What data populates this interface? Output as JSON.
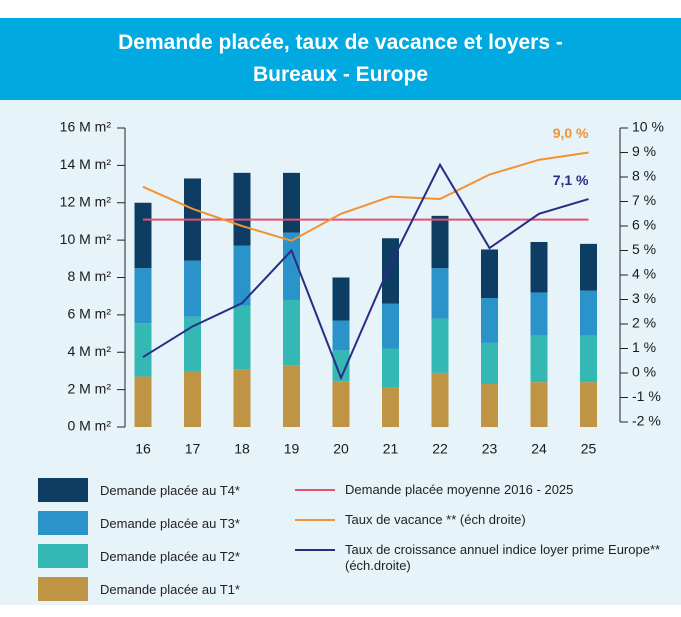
{
  "chart_data": {
    "type": "bar",
    "title": "Demande placée, taux de vacance et loyers - Bureaux - Europe",
    "categories": [
      "16",
      "17",
      "18",
      "19",
      "20",
      "21",
      "22",
      "23",
      "24",
      "25"
    ],
    "ylim": [
      0,
      16
    ],
    "yticks": [
      {
        "value": 0,
        "label": "0 M m²"
      },
      {
        "value": 2,
        "label": "2 M m²"
      },
      {
        "value": 4,
        "label": "4 M m²"
      },
      {
        "value": 6,
        "label": "6 M m²"
      },
      {
        "value": 8,
        "label": "8 M m²"
      },
      {
        "value": 10,
        "label": "10 M m²"
      },
      {
        "value": 12,
        "label": "12 M m²"
      },
      {
        "value": 14,
        "label": "14 M m²"
      },
      {
        "value": 16,
        "label": "16 M m²"
      }
    ],
    "y2lim": [
      -2,
      10
    ],
    "y2ticks": [
      {
        "value": -2,
        "label": "-2 %"
      },
      {
        "value": -1,
        "label": "-1 %"
      },
      {
        "value": 0,
        "label": "0 %"
      },
      {
        "value": 1,
        "label": "1 %"
      },
      {
        "value": 2,
        "label": "2 %"
      },
      {
        "value": 3,
        "label": "3 %"
      },
      {
        "value": 4,
        "label": "4 %"
      },
      {
        "value": 5,
        "label": "5 %"
      },
      {
        "value": 6,
        "label": "6 %"
      },
      {
        "value": 7,
        "label": "7 %"
      },
      {
        "value": 8,
        "label": "8 %"
      },
      {
        "value": 9,
        "label": "9 %"
      },
      {
        "value": 10,
        "label": "10 %"
      }
    ],
    "series": [
      {
        "name": "Demande placée au T1*",
        "type": "bar",
        "color": "#c09445",
        "values": [
          2.7,
          3.0,
          3.1,
          3.3,
          2.45,
          2.1,
          2.9,
          2.3,
          2.4,
          2.4
        ]
      },
      {
        "name": "Demande placée au T2*",
        "type": "bar",
        "color": "#33b8b3",
        "values": [
          2.85,
          2.9,
          3.4,
          3.5,
          1.65,
          2.1,
          2.9,
          2.2,
          2.5,
          2.5
        ]
      },
      {
        "name": "Demande placée au T3*",
        "type": "bar",
        "color": "#2a93c9",
        "values": [
          2.95,
          3.0,
          3.2,
          3.6,
          1.6,
          2.4,
          2.7,
          2.4,
          2.3,
          2.4
        ]
      },
      {
        "name": "Demande placée au T4*",
        "type": "bar",
        "color": "#0d3d63",
        "values": [
          3.5,
          4.4,
          3.9,
          3.2,
          2.3,
          3.5,
          2.8,
          2.6,
          2.7,
          2.5
        ]
      },
      {
        "name": "Demande placée moyenne 2016 - 2025",
        "type": "line",
        "color": "#e8506e",
        "values": [
          11.1,
          11.1,
          11.1,
          11.1,
          11.1,
          11.1,
          11.1,
          11.1,
          11.1,
          11.1
        ]
      },
      {
        "name": "Taux de vacance ** (éch droite)",
        "type": "line",
        "axis": "y2",
        "color": "#f39232",
        "values": [
          7.6,
          6.7,
          6.0,
          5.4,
          6.5,
          7.2,
          7.1,
          8.1,
          8.7,
          9.0
        ],
        "value_labels": [
          null,
          null,
          null,
          null,
          null,
          null,
          null,
          null,
          null,
          "9,0 %"
        ]
      },
      {
        "name": "Taux de croissance annuel indice loyer prime Europe** (éch.droite)",
        "type": "line",
        "axis": "y2",
        "color": "#2a2d84",
        "values": [
          0.65,
          1.9,
          2.85,
          5.0,
          -0.2,
          4.45,
          8.5,
          5.1,
          6.5,
          7.1
        ],
        "value_labels": [
          null,
          null,
          null,
          null,
          null,
          null,
          null,
          null,
          null,
          "7,1 %"
        ]
      }
    ]
  }
}
